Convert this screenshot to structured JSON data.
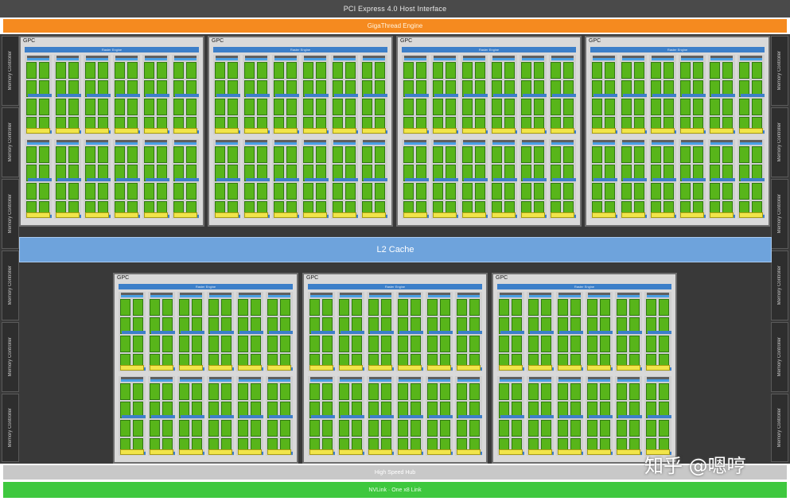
{
  "header": {
    "pcie_label": "PCI Express 4.0 Host Interface"
  },
  "giga_engine_label": "GigaThread Engine",
  "memory_controller_label": "Memory Controller",
  "l2_cache_label": "L2 Cache",
  "hub_label": "High Speed Hub",
  "nvlink_label": "NVLink · One x8 Link",
  "gpc_label": "GPC",
  "raster_engine_label": "Raster Engine",
  "watermark": "知乎 @嗯哼",
  "colors": {
    "pcie": "#4a4a4a",
    "giga_engine": "#f58a1f",
    "l2_cache": "#6ea3dc",
    "nvlink": "#3ec83e",
    "sm_core": "#58b51a",
    "texture_unit": "#f1e54a",
    "raster_engine": "#3c7fc9"
  },
  "gpcs_top": [
    {
      "id": 1
    },
    {
      "id": 2
    },
    {
      "id": 3
    },
    {
      "id": 4
    }
  ],
  "gpcs_bottom": [
    {
      "id": 5
    },
    {
      "id": 6
    },
    {
      "id": 7
    }
  ]
}
